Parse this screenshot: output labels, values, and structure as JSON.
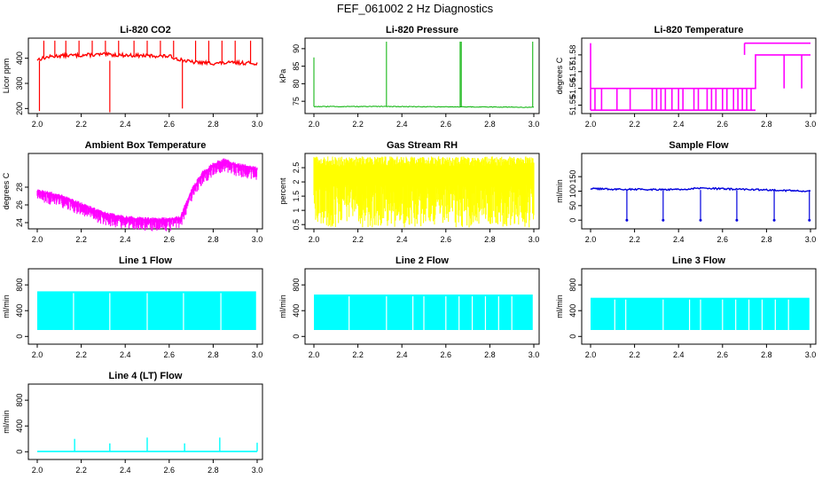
{
  "page": {
    "title": "FEF_061002  2 Hz Diagnostics"
  },
  "chart_data": [
    {
      "type": "line",
      "title": "Li-820 CO2",
      "ylabel": "Licor ppm",
      "color": "#ff0000",
      "xlim": [
        2.0,
        3.0
      ],
      "ylim": [
        180,
        480
      ],
      "xticks": [
        "2.0",
        "2.2",
        "2.4",
        "2.6",
        "2.8",
        "3.0"
      ],
      "yticks": [
        200,
        300,
        400
      ],
      "series": [
        {
          "name": "CO2",
          "x": [
            2.0,
            2.05,
            2.1,
            2.2,
            2.3,
            2.4,
            2.5,
            2.6,
            2.65,
            2.7,
            2.8,
            2.9,
            3.0
          ],
          "values": [
            395,
            405,
            410,
            412,
            415,
            412,
            410,
            408,
            395,
            385,
            380,
            382,
            380
          ]
        }
      ]
    },
    {
      "type": "line",
      "title": "Li-820 Pressure",
      "ylabel": "kPa",
      "color": "#00b000",
      "xlim": [
        2.0,
        3.0
      ],
      "ylim": [
        71.5,
        93
      ],
      "xticks": [
        "2.0",
        "2.2",
        "2.4",
        "2.6",
        "2.8",
        "3.0"
      ],
      "yticks": [
        75,
        80,
        85,
        90
      ],
      "series": [
        {
          "name": "Pressure",
          "x": [
            2.0,
            2.33,
            2.67,
            3.0
          ],
          "values": [
            73.5,
            73.5,
            73.4,
            73.3
          ]
        }
      ]
    },
    {
      "type": "line",
      "title": "Li-820 Temperature",
      "ylabel": "degrees C",
      "color": "#ff00ff",
      "xlim": [
        2.0,
        3.0
      ],
      "ylim": [
        51.545,
        51.59
      ],
      "xticks": [
        "2.0",
        "2.2",
        "2.4",
        "2.6",
        "2.8",
        "3.0"
      ],
      "yticks": [
        51.55,
        51.56,
        51.57,
        51.58
      ],
      "series": [
        {
          "name": "Temperature",
          "x": [
            2.0,
            2.3,
            2.55,
            2.7,
            2.75,
            3.0
          ],
          "values": [
            51.56,
            51.56,
            51.56,
            51.56,
            51.58,
            51.58
          ]
        }
      ]
    },
    {
      "type": "line",
      "title": "Ambient Box Temperature",
      "ylabel": "degrees C",
      "color": "#ff00ff",
      "xlim": [
        2.0,
        3.0
      ],
      "ylim": [
        23.3,
        31.8
      ],
      "xticks": [
        "2.0",
        "2.2",
        "2.4",
        "2.6",
        "2.8",
        "3.0"
      ],
      "yticks": [
        24,
        26,
        28
      ],
      "series": [
        {
          "name": "Box Temp",
          "x": [
            2.0,
            2.1,
            2.2,
            2.3,
            2.4,
            2.5,
            2.6,
            2.65,
            2.7,
            2.75,
            2.8,
            2.85,
            2.9,
            3.0
          ],
          "values": [
            27.5,
            27.0,
            26.0,
            25.0,
            24.5,
            24.3,
            24.3,
            24.5,
            27.5,
            29.5,
            30.5,
            31.0,
            30.5,
            30.0
          ]
        }
      ]
    },
    {
      "type": "line",
      "title": "Gas Stream RH",
      "ylabel": "percent",
      "color": "#ffff00",
      "xlim": [
        2.0,
        3.0
      ],
      "ylim": [
        0.35,
        3.0
      ],
      "xticks": [
        "2.0",
        "2.2",
        "2.4",
        "2.6",
        "2.8",
        "3.0"
      ],
      "yticks": [
        0.5,
        1.0,
        1.5,
        2.0,
        2.5
      ],
      "series": [
        {
          "name": "RH",
          "x": [
            2.0,
            3.0
          ],
          "values": [
            0.4,
            2.85
          ]
        }
      ]
    },
    {
      "type": "line",
      "title": "Sample Flow",
      "ylabel": "ml/min",
      "color": "#0000dd",
      "xlim": [
        2.0,
        3.0
      ],
      "ylim": [
        -30,
        230
      ],
      "xticks": [
        "2.0",
        "2.2",
        "2.4",
        "2.6",
        "2.8",
        "3.0"
      ],
      "yticks": [
        0,
        50,
        100,
        150
      ],
      "series": [
        {
          "name": "Sample Flow",
          "x": [
            2.0,
            2.2,
            2.4,
            2.5,
            2.6,
            2.8,
            3.0
          ],
          "values": [
            108,
            106,
            106,
            110,
            108,
            104,
            100
          ]
        }
      ]
    },
    {
      "type": "line",
      "title": "Line 1 Flow",
      "ylabel": "ml/min",
      "color": "#00ffff",
      "xlim": [
        2.0,
        3.0
      ],
      "ylim": [
        -120,
        1050
      ],
      "xticks": [
        "2.0",
        "2.2",
        "2.4",
        "2.6",
        "2.8",
        "3.0"
      ],
      "yticks": [
        0,
        400,
        800
      ],
      "series": [
        {
          "name": "Line 1",
          "x": [
            2.0,
            3.0
          ],
          "values": [
            100,
            700
          ]
        }
      ]
    },
    {
      "type": "line",
      "title": "Line 2 Flow",
      "ylabel": "ml/min",
      "color": "#00ffff",
      "xlim": [
        2.0,
        3.0
      ],
      "ylim": [
        -120,
        1050
      ],
      "xticks": [
        "2.0",
        "2.2",
        "2.4",
        "2.6",
        "2.8",
        "3.0"
      ],
      "yticks": [
        0,
        400,
        800
      ],
      "series": [
        {
          "name": "Line 2",
          "x": [
            2.0,
            3.0
          ],
          "values": [
            100,
            650
          ]
        }
      ]
    },
    {
      "type": "line",
      "title": "Line 3 Flow",
      "ylabel": "ml/min",
      "color": "#00ffff",
      "xlim": [
        2.0,
        3.0
      ],
      "ylim": [
        -120,
        1050
      ],
      "xticks": [
        "2.0",
        "2.2",
        "2.4",
        "2.6",
        "2.8",
        "3.0"
      ],
      "yticks": [
        0,
        400,
        800
      ],
      "series": [
        {
          "name": "Line 3",
          "x": [
            2.0,
            3.0
          ],
          "values": [
            100,
            600
          ]
        }
      ]
    },
    {
      "type": "line",
      "title": "Line 4 (LT) Flow",
      "ylabel": "ml/min",
      "color": "#00ffff",
      "xlim": [
        2.0,
        3.0
      ],
      "ylim": [
        -120,
        1050
      ],
      "xticks": [
        "2.0",
        "2.2",
        "2.4",
        "2.6",
        "2.8",
        "3.0"
      ],
      "yticks": [
        0,
        400,
        800
      ],
      "series": [
        {
          "name": "Line 4",
          "x": [
            2.0,
            2.17,
            2.33,
            2.5,
            2.67,
            2.83,
            3.0
          ],
          "values": [
            5,
            200,
            130,
            220,
            130,
            220,
            140
          ]
        }
      ]
    }
  ]
}
